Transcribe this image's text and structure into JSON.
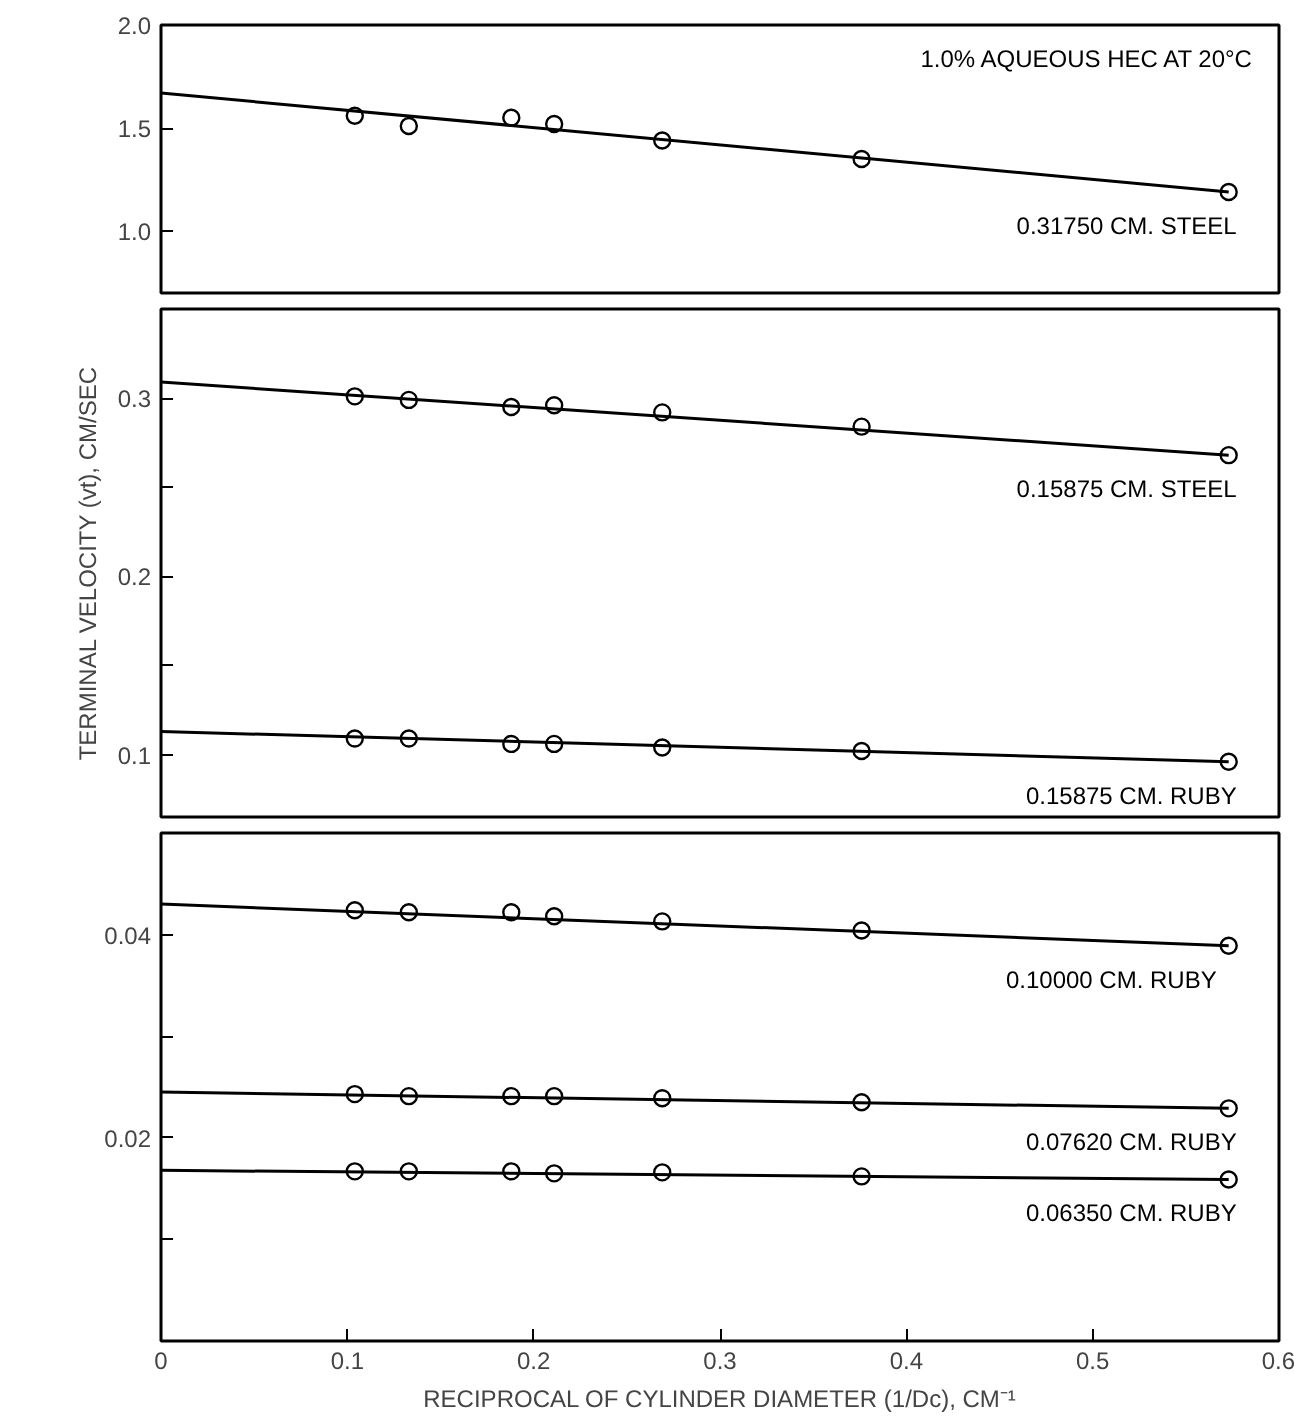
{
  "chart_data": [
    {
      "type": "scatter",
      "xlim": [
        0,
        0.6
      ],
      "ylim": [
        0.7,
        2.0
      ],
      "yticks": [
        {
          "value": 1.0,
          "label": "1.0"
        },
        1.5,
        {
          "value": 2.0,
          "label": "2.0"
        }
      ],
      "tick_labels": "y",
      "grid": false,
      "annotations": [
        "1.0% AQUEOUS HEC AT 20°C"
      ],
      "series": [
        {
          "name": "0.31750 CM. STEEL",
          "color": "#000000",
          "marker": "circle",
          "x": [
            0.104,
            0.133,
            0.188,
            0.211,
            0.269,
            0.376,
            0.573
          ],
          "values": [
            1.56,
            1.51,
            1.55,
            1.52,
            1.44,
            1.35,
            1.19
          ]
        },
        {
          "type": "line",
          "color": "#000000",
          "marker": "none",
          "x": [
            0,
            0.573
          ],
          "values": [
            1.67,
            1.19
          ]
        }
      ]
    },
    {
      "type": "scatter",
      "xlim": [
        0,
        0.6
      ],
      "ylim": [
        0.065,
        0.35
      ],
      "yticks": [
        0.1,
        {
          "value": 0.15,
          "label": null
        },
        0.2,
        {
          "value": 0.25,
          "label": null
        },
        0.3
      ],
      "tick_labels": "y",
      "grid": false,
      "ylabel": "TERMINAL VELOCITY (vt), CM/SEC",
      "series": [
        {
          "name": "0.15875 CM. STEEL",
          "color": "#000000",
          "marker": "circle",
          "x": [
            0.104,
            0.133,
            0.188,
            0.211,
            0.269,
            0.376,
            0.573
          ],
          "values": [
            0.301,
            0.299,
            0.295,
            0.296,
            0.292,
            0.284,
            0.268
          ]
        },
        {
          "type": "line",
          "color": "#000000",
          "marker": "none",
          "x": [
            0,
            0.573
          ],
          "values": [
            0.309,
            0.268
          ]
        },
        {
          "name": "0.15875 CM. RUBY",
          "color": "#000000",
          "marker": "circle",
          "x": [
            0.104,
            0.133,
            0.188,
            0.211,
            0.269,
            0.376,
            0.573
          ],
          "values": [
            0.109,
            0.109,
            0.106,
            0.106,
            0.104,
            0.102,
            0.096
          ]
        },
        {
          "type": "line",
          "color": "#000000",
          "marker": "none",
          "x": [
            0,
            0.573
          ],
          "values": [
            0.113,
            0.096
          ]
        }
      ]
    },
    {
      "type": "scatter",
      "xlim": [
        0,
        0.6
      ],
      "ylim": [
        0,
        0.05
      ],
      "xticks": [
        0,
        0.1,
        0.2,
        0.3,
        0.4,
        0.5,
        0.6
      ],
      "yticks": [
        {
          "value": 0,
          "label": null
        },
        {
          "value": 0.01,
          "label": null
        },
        0.02,
        {
          "value": 0.03,
          "label": null
        },
        0.04
      ],
      "grid": false,
      "xlabel": "RECIPROCAL OF CYLINDER DIAMETER (1/Dc), CM⁻¹",
      "series": [
        {
          "name": "0.10000    CM. RUBY",
          "color": "#000000",
          "marker": "circle",
          "x": [
            0.104,
            0.133,
            0.188,
            0.211,
            0.269,
            0.376,
            0.573
          ],
          "values": [
            0.0424,
            0.0422,
            0.0422,
            0.0418,
            0.0413,
            0.0404,
            0.0389
          ]
        },
        {
          "type": "line",
          "color": "#000000",
          "marker": "none",
          "x": [
            0,
            0.573
          ],
          "values": [
            0.043,
            0.0389
          ]
        },
        {
          "name": "0.07620 CM. RUBY",
          "color": "#000000",
          "marker": "circle",
          "x": [
            0.104,
            0.133,
            0.188,
            0.211,
            0.269,
            0.376,
            0.573
          ],
          "values": [
            0.0243,
            0.0241,
            0.0241,
            0.0241,
            0.0239,
            0.0235,
            0.0229
          ]
        },
        {
          "type": "line",
          "color": "#000000",
          "marker": "none",
          "x": [
            0,
            0.573
          ],
          "values": [
            0.0245,
            0.0229
          ]
        },
        {
          "name": "0.06350 CM. RUBY",
          "color": "#000000",
          "marker": "circle",
          "x": [
            0.104,
            0.133,
            0.188,
            0.211,
            0.269,
            0.376,
            0.573
          ],
          "values": [
            0.0167,
            0.0167,
            0.0167,
            0.0165,
            0.0166,
            0.0162,
            0.0159
          ]
        },
        {
          "type": "line",
          "color": "#000000",
          "marker": "none",
          "x": [
            0,
            0.573
          ],
          "values": [
            0.0168,
            0.0159
          ]
        }
      ]
    }
  ]
}
